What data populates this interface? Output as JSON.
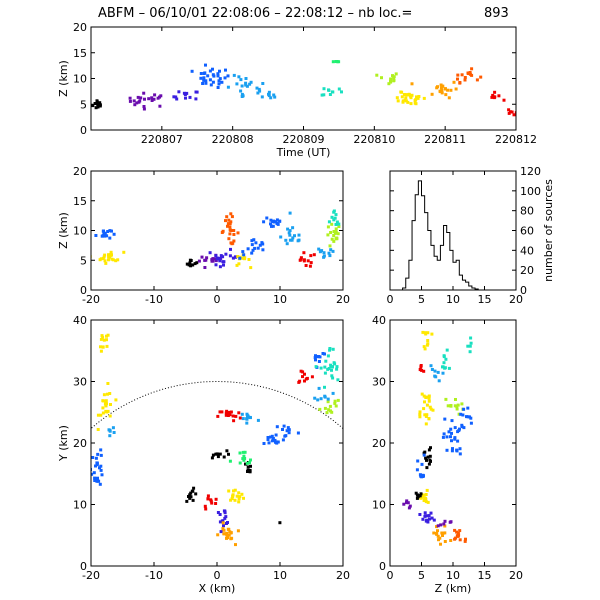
{
  "title": {
    "prefix": "ABFM – 06/10/01 22:08:06 – 22:08:12 – nb loc.=",
    "count": "893"
  },
  "colors": {
    "scale": [
      "#000000",
      "#6a0dad",
      "#3a1fe0",
      "#1060ff",
      "#1aa0f0",
      "#19e0c0",
      "#20f070",
      "#b0f020",
      "#ffe800",
      "#ffa000",
      "#ff5a00",
      "#f00000"
    ]
  },
  "chart_data": [
    {
      "id": "time_height",
      "type": "scatter",
      "xlabel": "Time (UT)",
      "ylabel": "Z (km)",
      "xlim": [
        220806,
        220812
      ],
      "ylim": [
        0,
        20
      ],
      "xticks": [
        220807,
        220808,
        220809,
        220810,
        220811,
        220812
      ],
      "xtick_labels": [
        "220807",
        "220808",
        "220809",
        "220810",
        "220811",
        "220812"
      ],
      "yticks": [
        0,
        5,
        10,
        15,
        20
      ],
      "clusters": [
        {
          "x": 220806.1,
          "y": 5.0,
          "sx": 0.06,
          "sy": 0.8,
          "n": 14,
          "c": 0
        },
        {
          "x": 220806.8,
          "y": 5.8,
          "sx": 0.25,
          "sy": 1.1,
          "n": 22,
          "c": 1
        },
        {
          "x": 220807.35,
          "y": 6.5,
          "sx": 0.15,
          "sy": 1.0,
          "n": 12,
          "c": 2
        },
        {
          "x": 220807.7,
          "y": 10.2,
          "sx": 0.22,
          "sy": 1.6,
          "n": 30,
          "c": 3
        },
        {
          "x": 220808.2,
          "y": 8.0,
          "sx": 0.25,
          "sy": 2.0,
          "n": 22,
          "c": 4
        },
        {
          "x": 220808.5,
          "y": 6.6,
          "sx": 0.12,
          "sy": 0.4,
          "n": 6,
          "c": 4
        },
        {
          "x": 220809.4,
          "y": 7.5,
          "sx": 0.12,
          "sy": 0.8,
          "n": 10,
          "c": 5
        },
        {
          "x": 220809.45,
          "y": 13.3,
          "sx": 0.06,
          "sy": 0.2,
          "n": 5,
          "c": 6
        },
        {
          "x": 220810.2,
          "y": 10.0,
          "sx": 0.12,
          "sy": 1.0,
          "n": 12,
          "c": 7
        },
        {
          "x": 220810.4,
          "y": 6.5,
          "sx": 0.12,
          "sy": 1.3,
          "n": 12,
          "c": 8
        },
        {
          "x": 220810.6,
          "y": 6.0,
          "sx": 0.15,
          "sy": 1.2,
          "n": 16,
          "c": 8
        },
        {
          "x": 220810.95,
          "y": 8.0,
          "sx": 0.2,
          "sy": 1.4,
          "n": 20,
          "c": 9
        },
        {
          "x": 220811.3,
          "y": 10.5,
          "sx": 0.15,
          "sy": 1.0,
          "n": 15,
          "c": 10
        },
        {
          "x": 220811.7,
          "y": 6.5,
          "sx": 0.08,
          "sy": 0.6,
          "n": 8,
          "c": 11
        },
        {
          "x": 220811.95,
          "y": 3.5,
          "sx": 0.05,
          "sy": 0.6,
          "n": 6,
          "c": 11
        }
      ]
    },
    {
      "id": "x_z",
      "type": "scatter",
      "xlabel": "",
      "ylabel": "Z (km)",
      "xlim": [
        -20,
        20
      ],
      "ylim": [
        0,
        20
      ],
      "xticks": [
        -20,
        -10,
        0,
        10,
        20
      ],
      "yticks": [
        0,
        5,
        10,
        15,
        20
      ],
      "clusters": [
        {
          "x": -18,
          "y": 9.5,
          "sx": 1.0,
          "sy": 0.8,
          "n": 14,
          "c": 3
        },
        {
          "x": -17,
          "y": 5.5,
          "sx": 1.8,
          "sy": 0.8,
          "n": 22,
          "c": 8
        },
        {
          "x": -4,
          "y": 4.5,
          "sx": 0.8,
          "sy": 0.5,
          "n": 10,
          "c": 0
        },
        {
          "x": -1,
          "y": 5.0,
          "sx": 1.5,
          "sy": 0.6,
          "n": 14,
          "c": 1
        },
        {
          "x": 1,
          "y": 5.5,
          "sx": 2.0,
          "sy": 1.0,
          "n": 20,
          "c": 2
        },
        {
          "x": 2,
          "y": 10.0,
          "sx": 1.2,
          "sy": 2.0,
          "n": 24,
          "c": 10
        },
        {
          "x": 4,
          "y": 5.0,
          "sx": 1.0,
          "sy": 0.8,
          "n": 12,
          "c": 8
        },
        {
          "x": 6,
          "y": 7.0,
          "sx": 2.0,
          "sy": 1.5,
          "n": 16,
          "c": 3
        },
        {
          "x": 9,
          "y": 11.5,
          "sx": 1.3,
          "sy": 1.2,
          "n": 16,
          "c": 3
        },
        {
          "x": 12,
          "y": 9.0,
          "sx": 1.5,
          "sy": 2.0,
          "n": 16,
          "c": 4
        },
        {
          "x": 14,
          "y": 5.0,
          "sx": 1.5,
          "sy": 1.0,
          "n": 12,
          "c": 11
        },
        {
          "x": 17,
          "y": 6.0,
          "sx": 1.5,
          "sy": 1.0,
          "n": 10,
          "c": 4
        },
        {
          "x": 18.5,
          "y": 9.0,
          "sx": 1.0,
          "sy": 1.8,
          "n": 18,
          "c": 7
        },
        {
          "x": 18.8,
          "y": 12.0,
          "sx": 0.6,
          "sy": 1.0,
          "n": 10,
          "c": 5
        }
      ]
    },
    {
      "id": "z_histogram",
      "type": "bar",
      "xlabel": "",
      "ylabel": "number of sources",
      "xlim": [
        0,
        20
      ],
      "ylim": [
        0,
        120
      ],
      "xticks": [
        0,
        5,
        10,
        15,
        20
      ],
      "yticks": [
        0,
        20,
        40,
        60,
        80,
        100,
        120
      ],
      "bin_width": 0.5,
      "bin_start": 0,
      "values": [
        0,
        0,
        0,
        0,
        2,
        12,
        30,
        70,
        96,
        110,
        95,
        78,
        60,
        45,
        34,
        30,
        45,
        65,
        58,
        40,
        28,
        30,
        15,
        10,
        8,
        4,
        2,
        1,
        0,
        0,
        0,
        0,
        0,
        0,
        0,
        0,
        0,
        0,
        0,
        0
      ]
    },
    {
      "id": "x_y",
      "type": "scatter",
      "xlabel": "X (km)",
      "ylabel": "Y (km)",
      "xlim": [
        -20,
        20
      ],
      "ylim": [
        0,
        40
      ],
      "xticks": [
        -20,
        -10,
        0,
        10,
        20
      ],
      "yticks": [
        0,
        10,
        20,
        30,
        40
      ],
      "range_circle_radius": 30,
      "clusters": [
        {
          "x": -18,
          "y": 36,
          "sx": 0.8,
          "sy": 1.8,
          "n": 12,
          "c": 8
        },
        {
          "x": -17.5,
          "y": 26,
          "sx": 1.0,
          "sy": 2.5,
          "n": 22,
          "c": 8
        },
        {
          "x": -16.5,
          "y": 22,
          "sx": 0.8,
          "sy": 0.8,
          "n": 6,
          "c": 4
        },
        {
          "x": -19,
          "y": 16,
          "sx": 0.8,
          "sy": 2.5,
          "n": 26,
          "c": 3
        },
        {
          "x": -4,
          "y": 11.5,
          "sx": 0.8,
          "sy": 0.8,
          "n": 12,
          "c": 0
        },
        {
          "x": -1,
          "y": 10.5,
          "sx": 1.0,
          "sy": 1.0,
          "n": 10,
          "c": 11
        },
        {
          "x": 1,
          "y": 8.0,
          "sx": 1.0,
          "sy": 1.0,
          "n": 14,
          "c": 2
        },
        {
          "x": 1.5,
          "y": 5.0,
          "sx": 1.0,
          "sy": 1.5,
          "n": 20,
          "c": 9
        },
        {
          "x": 3,
          "y": 11.5,
          "sx": 1.2,
          "sy": 0.8,
          "n": 16,
          "c": 8
        },
        {
          "x": 0,
          "y": 18,
          "sx": 1.3,
          "sy": 0.6,
          "n": 10,
          "c": 0
        },
        {
          "x": 5,
          "y": 16,
          "sx": 0.8,
          "sy": 1.0,
          "n": 8,
          "c": 0
        },
        {
          "x": 4,
          "y": 17,
          "sx": 1.5,
          "sy": 1.5,
          "n": 12,
          "c": 6
        },
        {
          "x": 2,
          "y": 24.5,
          "sx": 1.5,
          "sy": 0.8,
          "n": 16,
          "c": 11
        },
        {
          "x": 5,
          "y": 24,
          "sx": 1.5,
          "sy": 1.3,
          "n": 12,
          "c": 4
        },
        {
          "x": 9,
          "y": 20.5,
          "sx": 1.5,
          "sy": 1.0,
          "n": 16,
          "c": 3
        },
        {
          "x": 11,
          "y": 22,
          "sx": 1.5,
          "sy": 1.0,
          "n": 10,
          "c": 3
        },
        {
          "x": 14,
          "y": 31,
          "sx": 1.2,
          "sy": 1.2,
          "n": 10,
          "c": 11
        },
        {
          "x": 16,
          "y": 34,
          "sx": 1.2,
          "sy": 1.0,
          "n": 10,
          "c": 3
        },
        {
          "x": 18,
          "y": 32,
          "sx": 1.3,
          "sy": 3.0,
          "n": 24,
          "c": 5
        },
        {
          "x": 18,
          "y": 26,
          "sx": 1.3,
          "sy": 1.5,
          "n": 12,
          "c": 7
        },
        {
          "x": 17,
          "y": 28,
          "sx": 1.0,
          "sy": 1.0,
          "n": 8,
          "c": 4
        },
        {
          "x": 10,
          "y": 7,
          "sx": 0.2,
          "sy": 0.2,
          "n": 1,
          "c": 0
        }
      ]
    },
    {
      "id": "z_y",
      "type": "scatter",
      "xlabel": "Z (km)",
      "ylabel": "",
      "xlim": [
        0,
        20
      ],
      "ylim": [
        0,
        40
      ],
      "xticks": [
        0,
        5,
        10,
        15,
        20
      ],
      "yticks": [
        0,
        10,
        20,
        30,
        40
      ],
      "clusters": [
        {
          "x": 6,
          "y": 37,
          "sx": 0.5,
          "sy": 1.5,
          "n": 10,
          "c": 8
        },
        {
          "x": 5.5,
          "y": 26,
          "sx": 1.2,
          "sy": 2.5,
          "n": 22,
          "c": 8
        },
        {
          "x": 5,
          "y": 32,
          "sx": 0.5,
          "sy": 1.0,
          "n": 6,
          "c": 11
        },
        {
          "x": 8.5,
          "y": 33,
          "sx": 1.5,
          "sy": 1.5,
          "n": 10,
          "c": 5
        },
        {
          "x": 12.5,
          "y": 36,
          "sx": 0.3,
          "sy": 1.0,
          "n": 5,
          "c": 5
        },
        {
          "x": 7,
          "y": 31,
          "sx": 1.0,
          "sy": 1.5,
          "n": 8,
          "c": 4
        },
        {
          "x": 10,
          "y": 26,
          "sx": 1.5,
          "sy": 1.2,
          "n": 12,
          "c": 7
        },
        {
          "x": 10,
          "y": 21,
          "sx": 1.3,
          "sy": 2.5,
          "n": 26,
          "c": 3
        },
        {
          "x": 12,
          "y": 24,
          "sx": 0.8,
          "sy": 2.0,
          "n": 10,
          "c": 3
        },
        {
          "x": 6,
          "y": 18,
          "sx": 0.5,
          "sy": 1.5,
          "n": 12,
          "c": 0
        },
        {
          "x": 5,
          "y": 15,
          "sx": 0.5,
          "sy": 2.5,
          "n": 10,
          "c": 3
        },
        {
          "x": 5.5,
          "y": 11,
          "sx": 0.8,
          "sy": 1.0,
          "n": 14,
          "c": 8
        },
        {
          "x": 4.5,
          "y": 11.5,
          "sx": 0.5,
          "sy": 0.6,
          "n": 8,
          "c": 0
        },
        {
          "x": 3,
          "y": 10,
          "sx": 0.6,
          "sy": 0.6,
          "n": 6,
          "c": 1
        },
        {
          "x": 6,
          "y": 7.5,
          "sx": 1.0,
          "sy": 1.0,
          "n": 14,
          "c": 2
        },
        {
          "x": 8,
          "y": 5.0,
          "sx": 1.2,
          "sy": 1.5,
          "n": 16,
          "c": 9
        },
        {
          "x": 11,
          "y": 5.0,
          "sx": 1.2,
          "sy": 1.2,
          "n": 14,
          "c": 10
        },
        {
          "x": 9,
          "y": 7,
          "sx": 1.0,
          "sy": 0.6,
          "n": 6,
          "c": 1
        }
      ]
    }
  ]
}
